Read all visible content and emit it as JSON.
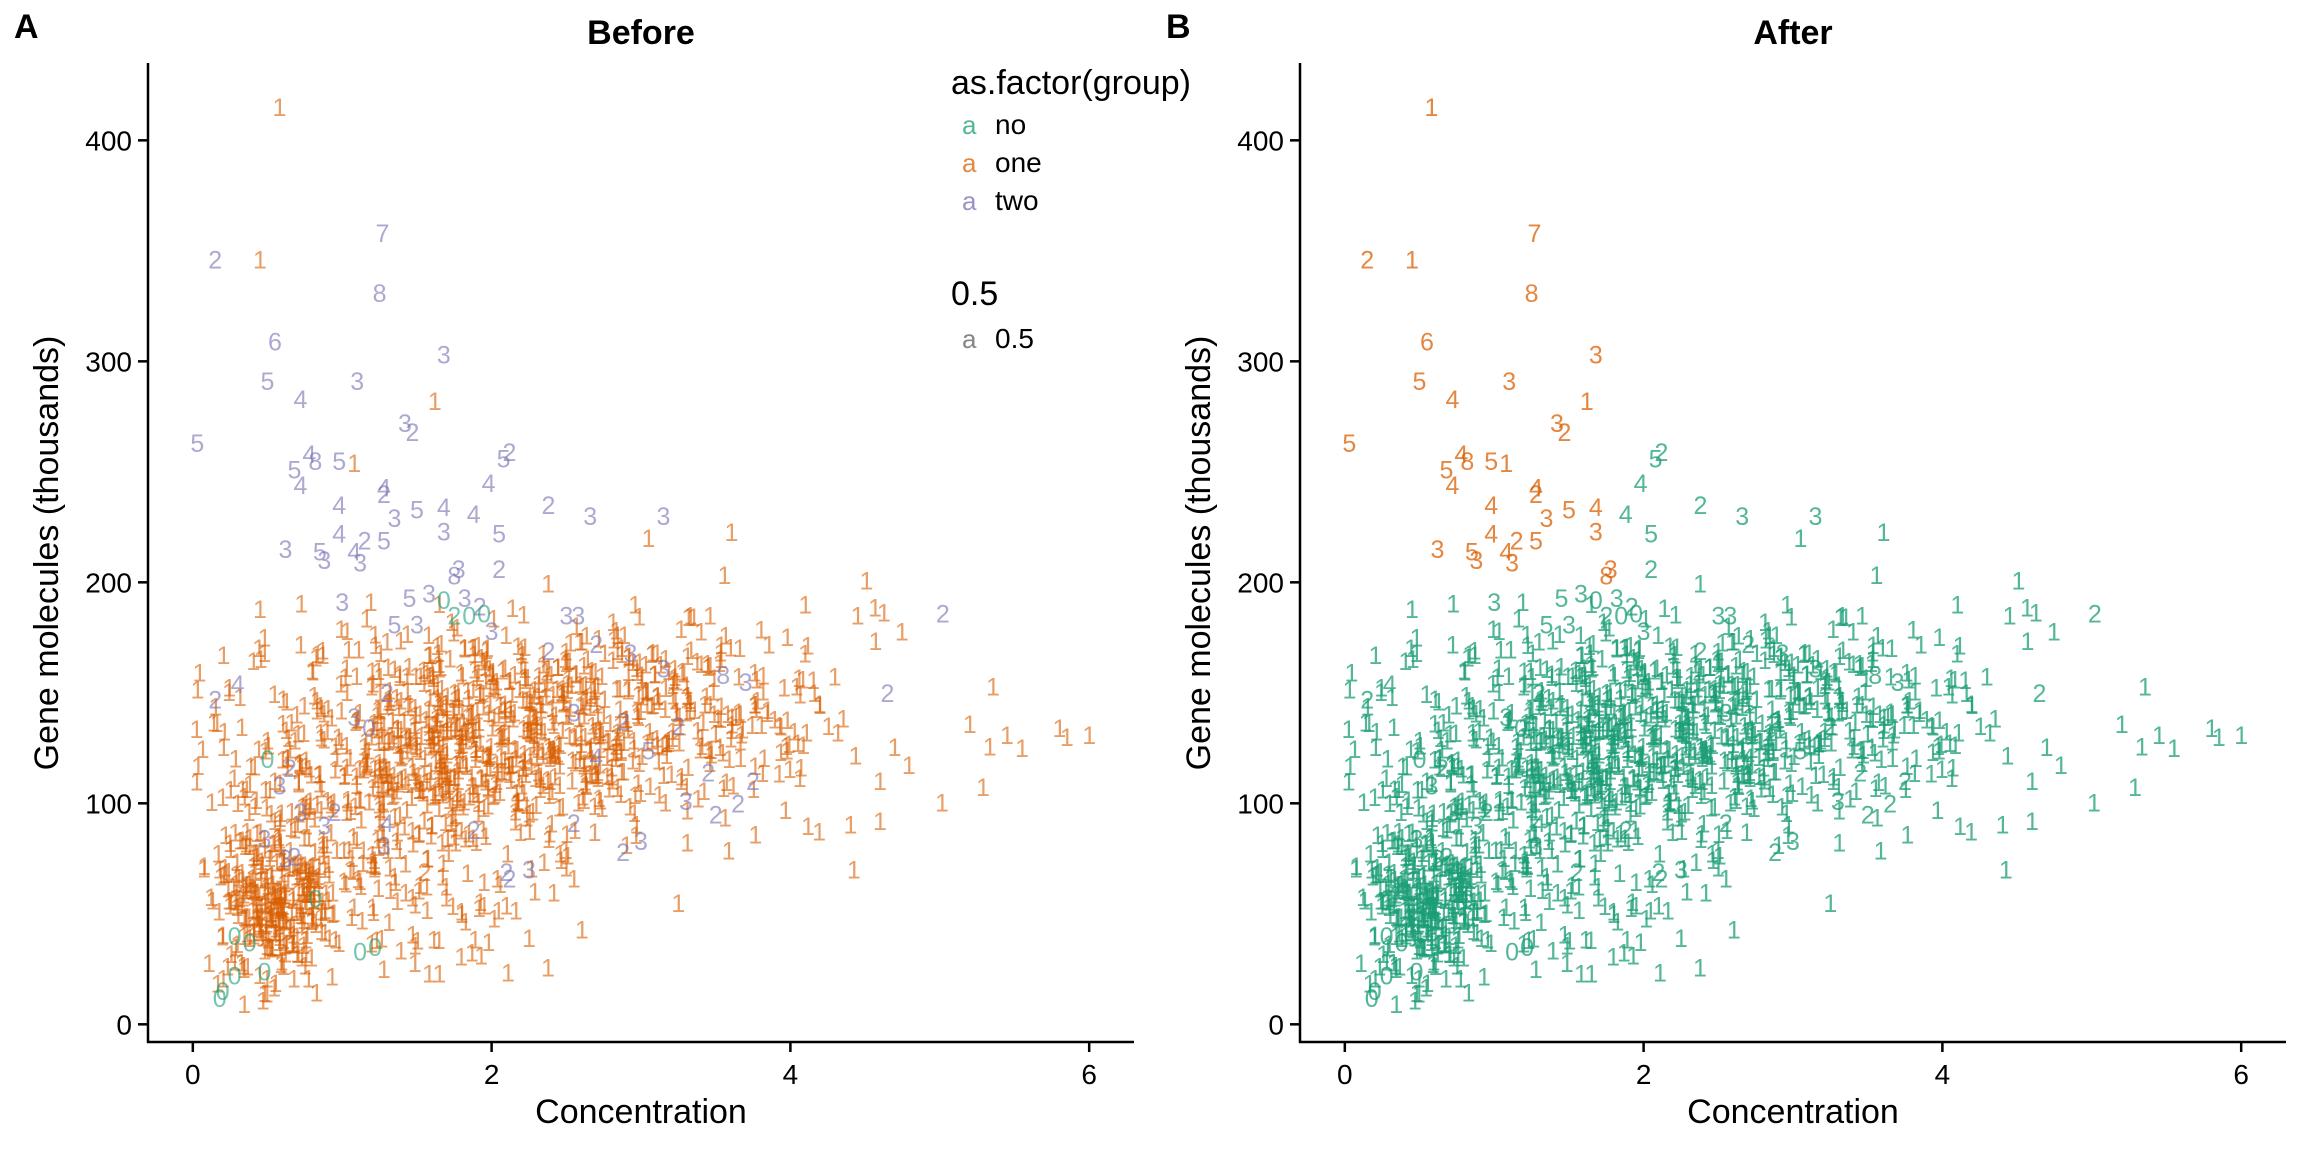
{
  "colors": {
    "no": "#1b9e77",
    "one": "#d95f02",
    "two": "#7570b3",
    "opacity_legend": "#666666"
  },
  "chart_data": [
    {
      "type": "scatter",
      "tag": "A",
      "title": "Before",
      "xlabel": "Concentration",
      "ylabel": "Gene molecules (thousands)",
      "xlim": [
        -0.3,
        6.3
      ],
      "ylim": [
        -8,
        435
      ],
      "xticks": [
        0,
        2,
        4,
        6
      ],
      "yticks": [
        0,
        100,
        200,
        300,
        400
      ],
      "grid": false,
      "marker": "text label (digit)",
      "color_by": "as.factor(group)",
      "alpha": 0.5,
      "legend": {
        "position": "top-right",
        "title": "as.factor(group)",
        "key_glyph": "a",
        "entries": [
          {
            "key": "no",
            "label": "no"
          },
          {
            "key": "one",
            "label": "one"
          },
          {
            "key": "two",
            "label": "two"
          }
        ],
        "alpha_title": "0.5",
        "alpha_entry": "0.5"
      },
      "points_note": "Dense cloud of ~1500 points labelled by a digit; listed points are the distinct outliers, the dense core is summarised by 'clusters'.",
      "points": [
        {
          "x": 0.58,
          "y": 415,
          "label": "1",
          "group": "one"
        },
        {
          "x": 0.15,
          "y": 346,
          "label": "2",
          "group": "two"
        },
        {
          "x": 0.45,
          "y": 346,
          "label": "1",
          "group": "one"
        },
        {
          "x": 1.27,
          "y": 358,
          "label": "7",
          "group": "two"
        },
        {
          "x": 1.25,
          "y": 331,
          "label": "8",
          "group": "two"
        },
        {
          "x": 0.55,
          "y": 309,
          "label": "6",
          "group": "two"
        },
        {
          "x": 1.68,
          "y": 303,
          "label": "3",
          "group": "two"
        },
        {
          "x": 0.5,
          "y": 291,
          "label": "5",
          "group": "two"
        },
        {
          "x": 1.1,
          "y": 291,
          "label": "3",
          "group": "two"
        },
        {
          "x": 0.72,
          "y": 283,
          "label": "4",
          "group": "two"
        },
        {
          "x": 1.62,
          "y": 282,
          "label": "1",
          "group": "one"
        },
        {
          "x": 1.42,
          "y": 272,
          "label": "3",
          "group": "two"
        },
        {
          "x": 1.47,
          "y": 268,
          "label": "2",
          "group": "two"
        },
        {
          "x": 0.03,
          "y": 263,
          "label": "5",
          "group": "two"
        },
        {
          "x": 2.12,
          "y": 259,
          "label": "2",
          "group": "two"
        },
        {
          "x": 2.08,
          "y": 256,
          "label": "5",
          "group": "two"
        },
        {
          "x": 0.78,
          "y": 258,
          "label": "4",
          "group": "two"
        },
        {
          "x": 0.82,
          "y": 255,
          "label": "8",
          "group": "two"
        },
        {
          "x": 0.98,
          "y": 255,
          "label": "5",
          "group": "two"
        },
        {
          "x": 1.08,
          "y": 254,
          "label": "1",
          "group": "one"
        },
        {
          "x": 0.68,
          "y": 251,
          "label": "5",
          "group": "two"
        },
        {
          "x": 0.72,
          "y": 244,
          "label": "4",
          "group": "two"
        },
        {
          "x": 1.98,
          "y": 245,
          "label": "4",
          "group": "two"
        },
        {
          "x": 1.28,
          "y": 243,
          "label": "4",
          "group": "two"
        },
        {
          "x": 1.28,
          "y": 240,
          "label": "2",
          "group": "two"
        },
        {
          "x": 2.38,
          "y": 235,
          "label": "2",
          "group": "two"
        },
        {
          "x": 1.68,
          "y": 234,
          "label": "4",
          "group": "two"
        },
        {
          "x": 0.98,
          "y": 235,
          "label": "4",
          "group": "two"
        },
        {
          "x": 1.5,
          "y": 233,
          "label": "5",
          "group": "two"
        },
        {
          "x": 1.88,
          "y": 231,
          "label": "4",
          "group": "two"
        },
        {
          "x": 1.35,
          "y": 229,
          "label": "3",
          "group": "two"
        },
        {
          "x": 2.66,
          "y": 230,
          "label": "3",
          "group": "two"
        },
        {
          "x": 3.15,
          "y": 230,
          "label": "3",
          "group": "two"
        },
        {
          "x": 1.68,
          "y": 223,
          "label": "3",
          "group": "two"
        },
        {
          "x": 2.05,
          "y": 222,
          "label": "5",
          "group": "two"
        },
        {
          "x": 0.98,
          "y": 222,
          "label": "4",
          "group": "two"
        },
        {
          "x": 3.05,
          "y": 220,
          "label": "1",
          "group": "one"
        },
        {
          "x": 1.15,
          "y": 219,
          "label": "2",
          "group": "two"
        },
        {
          "x": 1.28,
          "y": 219,
          "label": "5",
          "group": "two"
        },
        {
          "x": 0.62,
          "y": 215,
          "label": "3",
          "group": "two"
        },
        {
          "x": 0.85,
          "y": 214,
          "label": "5",
          "group": "two"
        },
        {
          "x": 1.08,
          "y": 214,
          "label": "4",
          "group": "two"
        },
        {
          "x": 0.88,
          "y": 210,
          "label": "3",
          "group": "two"
        },
        {
          "x": 1.12,
          "y": 209,
          "label": "3",
          "group": "two"
        },
        {
          "x": 1.78,
          "y": 206,
          "label": "3",
          "group": "two"
        },
        {
          "x": 2.05,
          "y": 206,
          "label": "2",
          "group": "two"
        },
        {
          "x": 1.75,
          "y": 203,
          "label": "8",
          "group": "two"
        },
        {
          "x": 1.45,
          "y": 193,
          "label": "5",
          "group": "two"
        },
        {
          "x": 1.58,
          "y": 195,
          "label": "3",
          "group": "two"
        },
        {
          "x": 1.82,
          "y": 193,
          "label": "3",
          "group": "two"
        },
        {
          "x": 1.68,
          "y": 192,
          "label": "0",
          "group": "no"
        },
        {
          "x": 1.92,
          "y": 189,
          "label": "2",
          "group": "two"
        },
        {
          "x": 1.0,
          "y": 191,
          "label": "3",
          "group": "two"
        },
        {
          "x": 1.75,
          "y": 185,
          "label": "2",
          "group": "no"
        },
        {
          "x": 1.85,
          "y": 185,
          "label": "0",
          "group": "no"
        },
        {
          "x": 1.95,
          "y": 186,
          "label": "0",
          "group": "no"
        },
        {
          "x": 5.02,
          "y": 186,
          "label": "2",
          "group": "two"
        },
        {
          "x": 2.5,
          "y": 185,
          "label": "3",
          "group": "two"
        },
        {
          "x": 2.58,
          "y": 185,
          "label": "3",
          "group": "two"
        },
        {
          "x": 1.35,
          "y": 181,
          "label": "5",
          "group": "two"
        },
        {
          "x": 1.5,
          "y": 181,
          "label": "3",
          "group": "two"
        },
        {
          "x": 2.0,
          "y": 178,
          "label": "3",
          "group": "two"
        },
        {
          "x": 2.7,
          "y": 172,
          "label": "2",
          "group": "two"
        },
        {
          "x": 2.38,
          "y": 169,
          "label": "2",
          "group": "two"
        },
        {
          "x": 2.93,
          "y": 168,
          "label": "3",
          "group": "two"
        },
        {
          "x": 3.15,
          "y": 161,
          "label": "3",
          "group": "two"
        },
        {
          "x": 3.55,
          "y": 158,
          "label": "8",
          "group": "two"
        },
        {
          "x": 3.7,
          "y": 155,
          "label": "3",
          "group": "two"
        },
        {
          "x": 0.15,
          "y": 147,
          "label": "2",
          "group": "two"
        },
        {
          "x": 0.3,
          "y": 154,
          "label": "4",
          "group": "two"
        },
        {
          "x": 4.65,
          "y": 150,
          "label": "2",
          "group": "two"
        },
        {
          "x": 1.3,
          "y": 150,
          "label": "2",
          "group": "two"
        },
        {
          "x": 1.08,
          "y": 139,
          "label": "3",
          "group": "two"
        },
        {
          "x": 1.18,
          "y": 134,
          "label": "0",
          "group": "two"
        },
        {
          "x": 2.88,
          "y": 137,
          "label": "2",
          "group": "two"
        },
        {
          "x": 3.25,
          "y": 135,
          "label": "2",
          "group": "two"
        },
        {
          "x": 2.55,
          "y": 141,
          "label": "3",
          "group": "two"
        },
        {
          "x": 3.05,
          "y": 124,
          "label": "5",
          "group": "two"
        },
        {
          "x": 2.7,
          "y": 121,
          "label": "4",
          "group": "two"
        },
        {
          "x": 0.5,
          "y": 120,
          "label": "0",
          "group": "no"
        },
        {
          "x": 0.65,
          "y": 116,
          "label": "2",
          "group": "two"
        },
        {
          "x": 0.58,
          "y": 108,
          "label": "3",
          "group": "two"
        },
        {
          "x": 3.45,
          "y": 114,
          "label": "2",
          "group": "two"
        },
        {
          "x": 3.75,
          "y": 110,
          "label": "2",
          "group": "two"
        },
        {
          "x": 0.72,
          "y": 96,
          "label": "3",
          "group": "two"
        },
        {
          "x": 0.95,
          "y": 96,
          "label": "2",
          "group": "two"
        },
        {
          "x": 0.88,
          "y": 90,
          "label": "3",
          "group": "two"
        },
        {
          "x": 1.3,
          "y": 91,
          "label": "4",
          "group": "two"
        },
        {
          "x": 3.3,
          "y": 101,
          "label": "3",
          "group": "two"
        },
        {
          "x": 3.5,
          "y": 95,
          "label": "2",
          "group": "two"
        },
        {
          "x": 3.65,
          "y": 100,
          "label": "2",
          "group": "two"
        },
        {
          "x": 0.48,
          "y": 84,
          "label": "3",
          "group": "two"
        },
        {
          "x": 0.68,
          "y": 76,
          "label": "2",
          "group": "two"
        },
        {
          "x": 0.62,
          "y": 75,
          "label": "3",
          "group": "two"
        },
        {
          "x": 1.28,
          "y": 81,
          "label": "3",
          "group": "two"
        },
        {
          "x": 1.88,
          "y": 88,
          "label": "2",
          "group": "two"
        },
        {
          "x": 2.55,
          "y": 91,
          "label": "2",
          "group": "two"
        },
        {
          "x": 2.88,
          "y": 78,
          "label": "2",
          "group": "two"
        },
        {
          "x": 3.0,
          "y": 83,
          "label": "3",
          "group": "two"
        },
        {
          "x": 1.55,
          "y": 69,
          "label": "2",
          "group": "one"
        },
        {
          "x": 2.1,
          "y": 69,
          "label": "2",
          "group": "two"
        },
        {
          "x": 2.12,
          "y": 66,
          "label": "2",
          "group": "two"
        },
        {
          "x": 2.25,
          "y": 70,
          "label": "3",
          "group": "two"
        },
        {
          "x": 0.82,
          "y": 57,
          "label": "0",
          "group": "no"
        },
        {
          "x": 0.28,
          "y": 40,
          "label": "0",
          "group": "no"
        },
        {
          "x": 0.38,
          "y": 37,
          "label": "0",
          "group": "no"
        },
        {
          "x": 1.12,
          "y": 33,
          "label": "0",
          "group": "no"
        },
        {
          "x": 1.22,
          "y": 35,
          "label": "0",
          "group": "no"
        },
        {
          "x": 0.48,
          "y": 24,
          "label": "0",
          "group": "no"
        },
        {
          "x": 0.28,
          "y": 22,
          "label": "0",
          "group": "no"
        },
        {
          "x": 0.2,
          "y": 15,
          "label": "0",
          "group": "no"
        },
        {
          "x": 0.18,
          "y": 12,
          "label": "0",
          "group": "no"
        },
        {
          "x": 5.85,
          "y": 130,
          "label": "1",
          "group": "one"
        },
        {
          "x": 6.0,
          "y": 131,
          "label": "1",
          "group": "one"
        },
        {
          "x": 5.45,
          "y": 131,
          "label": "1",
          "group": "one"
        },
        {
          "x": 5.2,
          "y": 136,
          "label": "1",
          "group": "one"
        },
        {
          "x": 5.55,
          "y": 125,
          "label": "1",
          "group": "one"
        },
        {
          "x": 4.1,
          "y": 190,
          "label": "1",
          "group": "one"
        },
        {
          "x": 4.45,
          "y": 185,
          "label": "1",
          "group": "one"
        },
        {
          "x": 4.6,
          "y": 110,
          "label": "1",
          "group": "one"
        },
        {
          "x": 4.6,
          "y": 92,
          "label": "1",
          "group": "one"
        },
        {
          "x": 3.25,
          "y": 55,
          "label": "1",
          "group": "one"
        },
        {
          "x": 2.55,
          "y": 66,
          "label": "1",
          "group": "one"
        },
        {
          "x": 1.65,
          "y": 23,
          "label": "1",
          "group": "one"
        },
        {
          "x": 2.25,
          "y": 39,
          "label": "1",
          "group": "one"
        },
        {
          "x": 0.45,
          "y": 188,
          "label": "1",
          "group": "one"
        },
        {
          "x": 0.48,
          "y": 168,
          "label": "1",
          "group": "one"
        }
      ],
      "clusters": [
        {
          "x_mean": 1.9,
          "x_sd": 0.75,
          "y_mean": 130,
          "y_sd": 24,
          "count": 750,
          "group": "one",
          "label": "1"
        },
        {
          "x_mean": 0.55,
          "x_sd": 0.2,
          "y_mean": 55,
          "y_sd": 18,
          "count": 280,
          "group": "one",
          "label": "1"
        },
        {
          "x_mean": 3.3,
          "x_sd": 0.7,
          "y_mean": 140,
          "y_sd": 26,
          "count": 220,
          "group": "one",
          "label": "1"
        },
        {
          "x_mean": 1.3,
          "x_sd": 0.55,
          "y_mean": 85,
          "y_sd": 28,
          "count": 220,
          "group": "one",
          "label": "1"
        }
      ]
    },
    {
      "type": "scatter",
      "tag": "B",
      "title": "After",
      "xlabel": "Concentration",
      "ylabel": "Gene molecules (thousands)",
      "xlim": [
        -0.3,
        6.3
      ],
      "ylim": [
        -8,
        435
      ],
      "xticks": [
        0,
        2,
        4,
        6
      ],
      "yticks": [
        0,
        100,
        200,
        300,
        400
      ],
      "grid": false,
      "marker": "text label (digit)",
      "points_note": "Same observations as panel A; points in the upper-left outlier region are orange, all remaining points are green.",
      "recolor_rule": {
        "outlier_group": "one",
        "other_group": "no",
        "region": "x < 1.8 and y > 195"
      }
    }
  ]
}
